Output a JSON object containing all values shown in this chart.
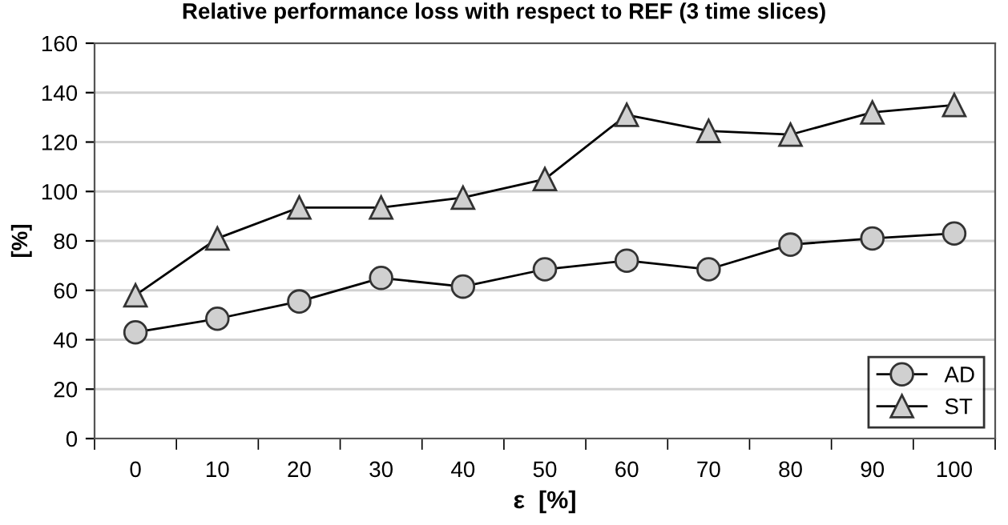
{
  "chart_data": {
    "type": "line",
    "title": "Relative performance loss with respect to REF (3 time slices)",
    "xlabel": "ε  [%]",
    "ylabel": "[%]",
    "categories": [
      "0",
      "10",
      "20",
      "30",
      "40",
      "50",
      "60",
      "70",
      "80",
      "90",
      "100"
    ],
    "series": [
      {
        "name": "AD",
        "color": "#d0d0d0",
        "marker": "circle",
        "values": [
          43,
          48.5,
          55.5,
          65,
          61.5,
          68.5,
          72,
          68.5,
          78.5,
          81,
          83
        ]
      },
      {
        "name": "ST",
        "color": "#d0d0d0",
        "marker": "triangle",
        "values": [
          58,
          81,
          93.5,
          93.5,
          97.5,
          105,
          131,
          124.5,
          123,
          132,
          135
        ]
      }
    ],
    "ylim": [
      0,
      160
    ],
    "yticks": [
      0,
      20,
      40,
      60,
      80,
      100,
      120,
      140,
      160
    ],
    "grid": "y",
    "legend": "bottom right",
    "line_style": "solid"
  }
}
